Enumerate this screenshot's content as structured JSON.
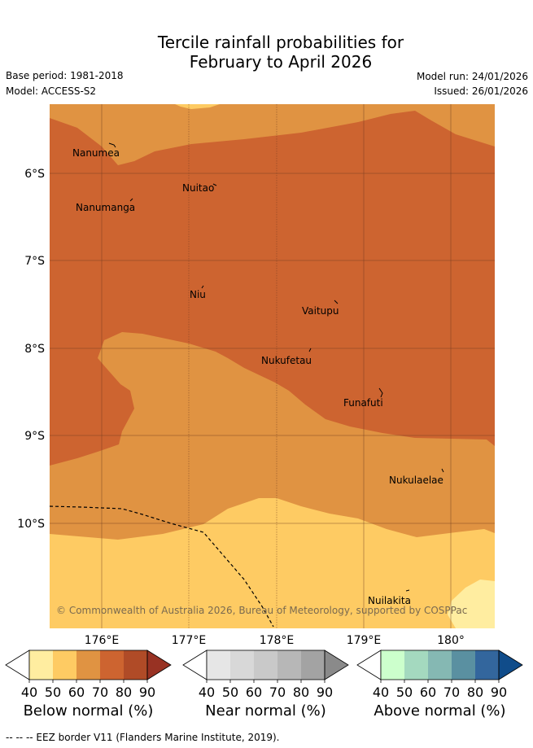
{
  "title": {
    "line1": "Tercile rainfall probabilities for",
    "line2": "February to April 2026"
  },
  "meta": {
    "base_period": "Base period: 1981-2018",
    "model": "Model: ACCESS-S2",
    "model_run": "Model run: 24/01/2026",
    "issued": "Issued: 26/01/2026"
  },
  "map": {
    "lat_labels": [
      "6°S",
      "7°S",
      "8°S",
      "9°S",
      "10°S"
    ],
    "lon_labels": [
      "176°E",
      "177°E",
      "178°E",
      "179°E",
      "180°"
    ],
    "places": [
      "Nanumea",
      "Nuitao",
      "Nanumanga",
      "Niu",
      "Vaitupu",
      "Nukufetau",
      "Funafuti",
      "Nukulaelae",
      "Nuilakita"
    ],
    "copyright": "© Commonwealth of Australia 2026, Bureau of Meteorology, supported by COSPPac"
  },
  "legends": {
    "below": {
      "title": "Below normal (%)",
      "ticks": [
        "40",
        "50",
        "60",
        "70",
        "80",
        "90"
      ],
      "colors": [
        "#ffeda0",
        "#fecb63",
        "#e09342",
        "#cd6430",
        "#b04b27",
        "#983223"
      ]
    },
    "near": {
      "title": "Near normal (%)",
      "ticks": [
        "40",
        "50",
        "60",
        "70",
        "80",
        "90"
      ],
      "colors": [
        "#e6e6e6",
        "#d8d8d8",
        "#c9c9c9",
        "#b7b7b7",
        "#a3a3a3",
        "#8a8a8a"
      ]
    },
    "above": {
      "title": "Above normal (%)",
      "ticks": [
        "40",
        "50",
        "60",
        "70",
        "80",
        "90"
      ],
      "colors": [
        "#ccffcc",
        "#a4d9bf",
        "#85b8b3",
        "#5a90a1",
        "#33669d",
        "#104c8a"
      ]
    }
  },
  "footer": {
    "eez_text": "--  --  -- EEZ border V11 (Flanders Marine Institute, 2019)."
  }
}
